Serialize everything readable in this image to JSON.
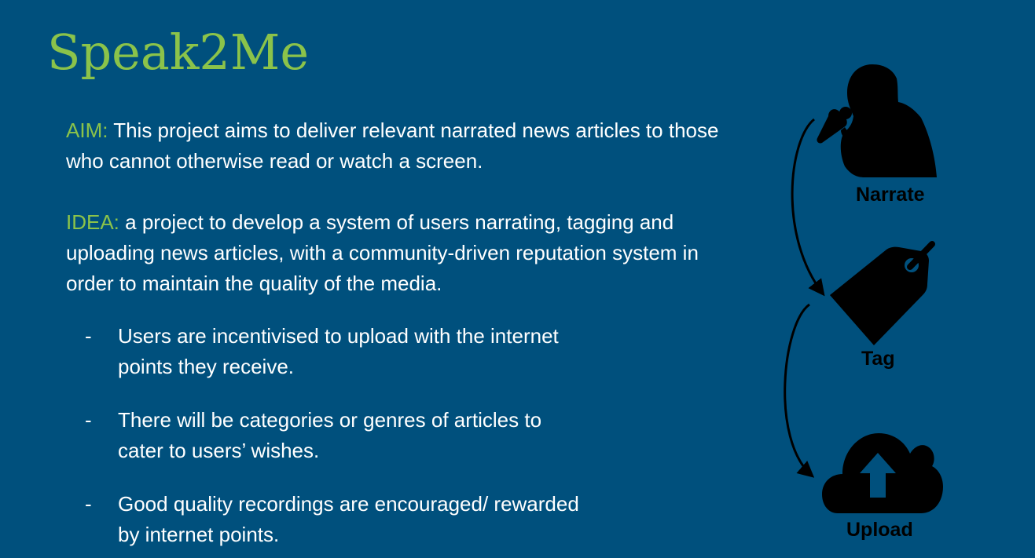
{
  "title": "Speak2Me",
  "aim": {
    "label": "AIM:",
    "text": " This project aims to deliver relevant narrated news articles to those who cannot otherwise read or watch a screen."
  },
  "idea": {
    "label": "IDEA:",
    "text": "  a project to develop a system of users narrating, tagging and uploading news articles, with a community-driven reputation system in order to maintain the quality of the media."
  },
  "bullets": [
    {
      "dash": "-",
      "text": "Users are incentivised to upload with the internet points they receive."
    },
    {
      "dash": "-",
      "text": "There will be categories or genres of articles to cater to users’ wishes."
    },
    {
      "dash": "-",
      "text": "Good quality recordings are encouraged/ rewarded by internet points."
    }
  ],
  "diagram": {
    "steps": [
      {
        "label": "Narrate",
        "icon": "narrator-microphone-icon"
      },
      {
        "label": "Tag",
        "icon": "tag-icon"
      },
      {
        "label": "Upload",
        "icon": "cloud-upload-icon"
      }
    ]
  },
  "colors": {
    "background": "#00507D",
    "accent": "#8BC34A",
    "text": "#FFFFFF",
    "icon": "#000000"
  }
}
